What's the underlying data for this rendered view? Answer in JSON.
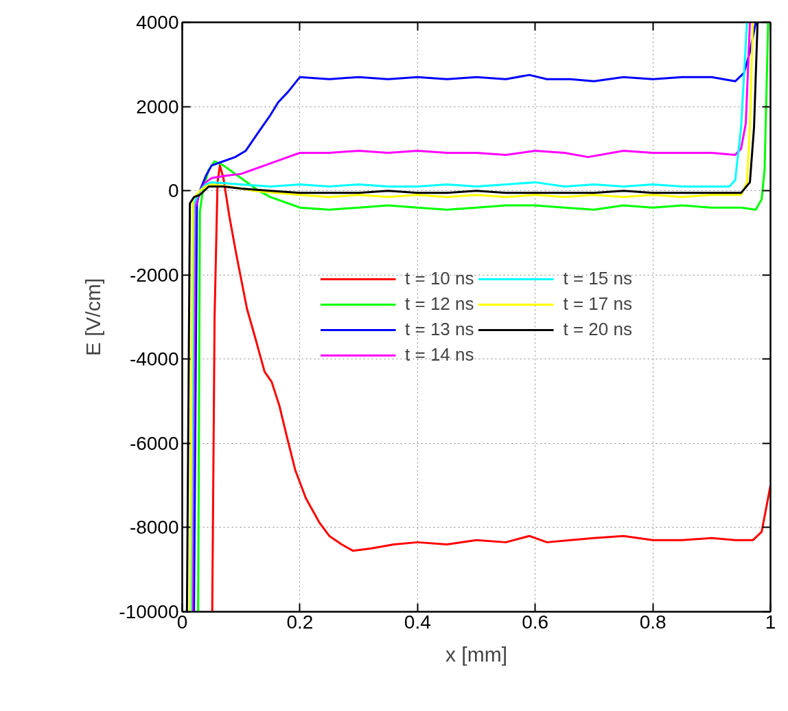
{
  "chart_data": {
    "type": "line",
    "xlabel": "x [mm]",
    "ylabel": "E [V/cm]",
    "xlim": [
      0,
      1
    ],
    "ylim": [
      -10000,
      4000
    ],
    "xticks": [
      0,
      0.2,
      0.4,
      0.6,
      0.8,
      1
    ],
    "yticks": [
      -10000,
      -8000,
      -6000,
      -4000,
      -2000,
      0,
      2000,
      4000
    ],
    "grid": true,
    "legend": "center",
    "line_style": "solid",
    "marker": "none",
    "series": [
      {
        "name": "t = 10 ns",
        "color": "#ff0000",
        "x": [
          0.051,
          0.055,
          0.06,
          0.064,
          0.07,
          0.08,
          0.092,
          0.11,
          0.124,
          0.14,
          0.152,
          0.165,
          0.178,
          0.192,
          0.21,
          0.233,
          0.25,
          0.271,
          0.29,
          0.32,
          0.36,
          0.4,
          0.45,
          0.5,
          0.55,
          0.59,
          0.62,
          0.66,
          0.7,
          0.75,
          0.8,
          0.85,
          0.9,
          0.94,
          0.97,
          0.985,
          1.0
        ],
        "values": [
          -10000,
          -3000,
          200,
          600,
          300,
          -600,
          -1520,
          -2800,
          -3490,
          -4300,
          -4540,
          -5100,
          -5850,
          -6630,
          -7300,
          -7880,
          -8200,
          -8400,
          -8550,
          -8500,
          -8400,
          -8350,
          -8400,
          -8300,
          -8350,
          -8200,
          -8350,
          -8300,
          -8250,
          -8200,
          -8300,
          -8300,
          -8250,
          -8300,
          -8300,
          -8100,
          -7000
        ]
      },
      {
        "name": "t = 12 ns",
        "color": "#00ff00",
        "x": [
          0.027,
          0.03,
          0.035,
          0.045,
          0.055,
          0.07,
          0.085,
          0.1,
          0.115,
          0.13,
          0.15,
          0.18,
          0.2,
          0.25,
          0.3,
          0.35,
          0.4,
          0.45,
          0.5,
          0.55,
          0.6,
          0.65,
          0.7,
          0.75,
          0.8,
          0.85,
          0.9,
          0.95,
          0.975,
          0.985,
          0.99,
          0.996
        ],
        "values": [
          -10000,
          -500,
          0,
          500,
          700,
          600,
          450,
          300,
          150,
          0,
          -150,
          -300,
          -400,
          -450,
          -400,
          -350,
          -400,
          -450,
          -400,
          -350,
          -350,
          -400,
          -450,
          -350,
          -400,
          -350,
          -400,
          -400,
          -450,
          -200,
          500,
          4000
        ]
      },
      {
        "name": "t = 13 ns",
        "color": "#0000ff",
        "x": [
          0.02,
          0.025,
          0.03,
          0.04,
          0.05,
          0.07,
          0.09,
          0.108,
          0.13,
          0.15,
          0.163,
          0.18,
          0.2,
          0.25,
          0.3,
          0.35,
          0.4,
          0.45,
          0.5,
          0.55,
          0.59,
          0.62,
          0.66,
          0.7,
          0.75,
          0.8,
          0.85,
          0.9,
          0.94,
          0.955,
          0.965,
          0.975
        ],
        "values": [
          -10000,
          -300,
          0,
          350,
          600,
          700,
          800,
          950,
          1400,
          1800,
          2100,
          2350,
          2700,
          2650,
          2700,
          2650,
          2700,
          2650,
          2700,
          2650,
          2750,
          2650,
          2650,
          2600,
          2700,
          2650,
          2700,
          2700,
          2600,
          2800,
          3300,
          4000
        ]
      },
      {
        "name": "t = 14 ns",
        "color": "#ff00ff",
        "x": [
          0.017,
          0.022,
          0.03,
          0.04,
          0.05,
          0.07,
          0.1,
          0.12,
          0.14,
          0.17,
          0.2,
          0.25,
          0.3,
          0.35,
          0.4,
          0.45,
          0.5,
          0.55,
          0.6,
          0.65,
          0.69,
          0.75,
          0.8,
          0.85,
          0.9,
          0.94,
          0.95,
          0.958,
          0.965
        ],
        "values": [
          -10000,
          -400,
          0,
          200,
          300,
          350,
          400,
          500,
          600,
          750,
          900,
          900,
          950,
          900,
          950,
          900,
          900,
          850,
          950,
          900,
          800,
          950,
          900,
          900,
          900,
          850,
          1000,
          1600,
          4000
        ]
      },
      {
        "name": "t = 15 ns",
        "color": "#00ffff",
        "x": [
          0.015,
          0.02,
          0.03,
          0.04,
          0.05,
          0.07,
          0.1,
          0.15,
          0.2,
          0.25,
          0.3,
          0.35,
          0.4,
          0.45,
          0.5,
          0.55,
          0.6,
          0.65,
          0.7,
          0.75,
          0.8,
          0.85,
          0.9,
          0.93,
          0.94,
          0.95,
          0.96
        ],
        "values": [
          -10000,
          -300,
          0,
          150,
          200,
          180,
          150,
          100,
          150,
          100,
          150,
          100,
          100,
          150,
          100,
          150,
          200,
          100,
          150,
          100,
          150,
          100,
          100,
          100,
          250,
          1500,
          4000
        ]
      },
      {
        "name": "t = 17 ns",
        "color": "#ffff00",
        "x": [
          0.013,
          0.018,
          0.03,
          0.04,
          0.05,
          0.08,
          0.12,
          0.16,
          0.2,
          0.25,
          0.3,
          0.35,
          0.4,
          0.45,
          0.5,
          0.55,
          0.6,
          0.65,
          0.7,
          0.75,
          0.8,
          0.85,
          0.9,
          0.95,
          0.96,
          0.965,
          0.97
        ],
        "values": [
          -10000,
          -200,
          0,
          100,
          150,
          100,
          0,
          -50,
          -100,
          -150,
          -100,
          -150,
          -100,
          -150,
          -100,
          -150,
          -100,
          -150,
          -100,
          -150,
          -100,
          -150,
          -100,
          -100,
          200,
          1500,
          4000
        ]
      },
      {
        "name": "t = 20 ns",
        "color": "#000000",
        "x": [
          0.008,
          0.013,
          0.02,
          0.03,
          0.045,
          0.07,
          0.1,
          0.15,
          0.2,
          0.25,
          0.3,
          0.35,
          0.4,
          0.45,
          0.5,
          0.55,
          0.6,
          0.65,
          0.7,
          0.75,
          0.8,
          0.85,
          0.9,
          0.95,
          0.965,
          0.972,
          0.978
        ],
        "values": [
          -10000,
          -300,
          -150,
          -100,
          100,
          100,
          50,
          0,
          -50,
          -50,
          -50,
          0,
          -50,
          -50,
          0,
          -50,
          -50,
          -50,
          -50,
          0,
          -50,
          -50,
          -50,
          -50,
          200,
          1500,
          4000
        ]
      }
    ]
  }
}
